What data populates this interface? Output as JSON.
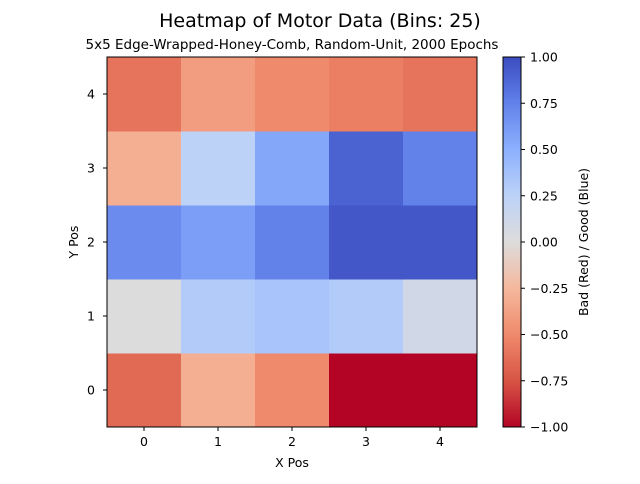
{
  "chart_data": {
    "type": "heatmap",
    "title": "Heatmap of Motor Data (Bins: 25)",
    "subtitle": "5x5 Edge-Wrapped-Honey-Comb, Random-Unit, 2000 Epochs",
    "xlabel": "X Pos",
    "ylabel": "Y Pos",
    "x_categories": [
      "0",
      "1",
      "2",
      "3",
      "4"
    ],
    "y_categories": [
      "0",
      "1",
      "2",
      "3",
      "4"
    ],
    "values": [
      [
        -0.65,
        -0.3,
        -0.5,
        -1.0,
        -1.0
      ],
      [
        0.0,
        0.3,
        0.35,
        0.3,
        0.1
      ],
      [
        0.7,
        0.6,
        0.75,
        0.95,
        0.95
      ],
      [
        -0.3,
        0.25,
        0.55,
        0.9,
        0.75
      ],
      [
        -0.6,
        -0.4,
        -0.5,
        -0.55,
        -0.6
      ]
    ],
    "colormap": "coolwarm",
    "colorbar": {
      "label": "Bad (Red)     /     Good (Blue)",
      "range": [
        -1.0,
        1.0
      ],
      "ticks": [
        "1.00",
        "0.75",
        "0.50",
        "0.25",
        "0.00",
        "−0.25",
        "−0.50",
        "−0.75",
        "−1.00"
      ]
    }
  }
}
